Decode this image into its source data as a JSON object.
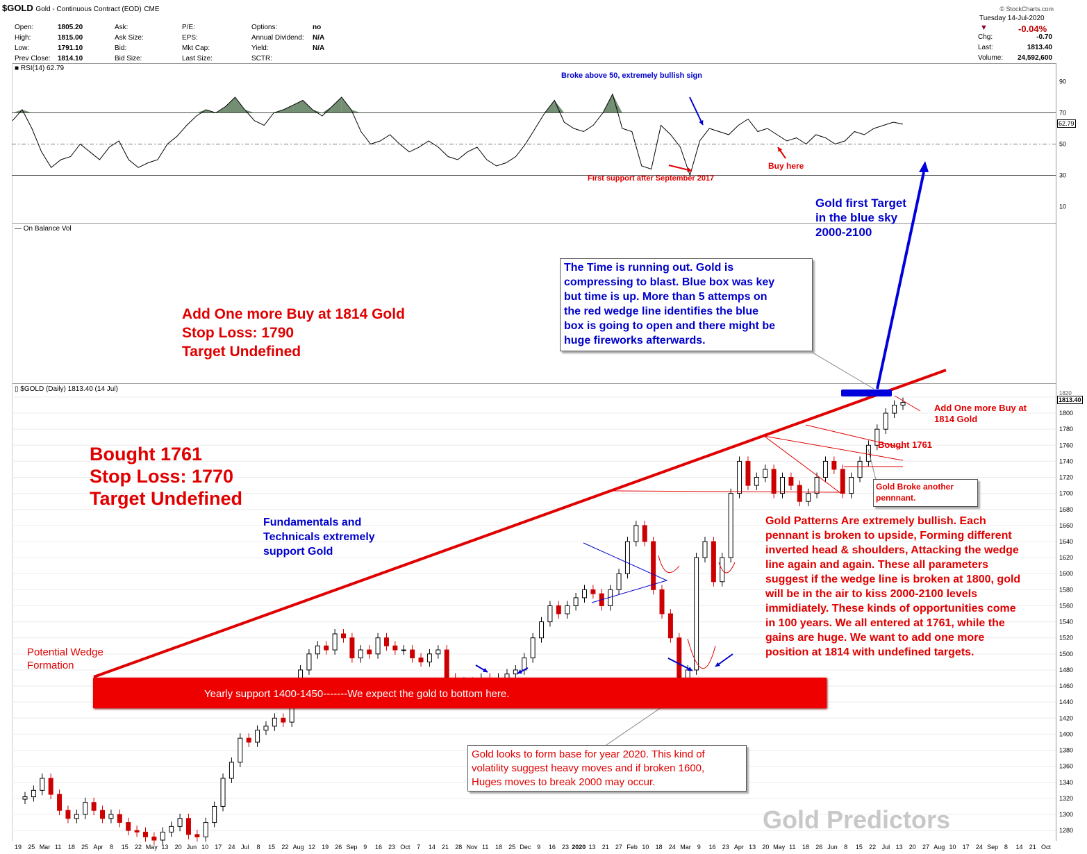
{
  "header": {
    "symbol": "$GOLD",
    "description": "Gold - Continuous Contract (EOD)",
    "exchange": "CME",
    "provider": "© StockCharts.com",
    "date": "Tuesday  14-Jul-2020",
    "change_pct": "-0.04%",
    "quotes_col1": [
      [
        "Open:",
        "1805.20"
      ],
      [
        "High:",
        "1815.00"
      ],
      [
        "Low:",
        "1791.10"
      ],
      [
        "Prev Close:",
        "1814.10"
      ]
    ],
    "quotes_col2": [
      [
        "Ask:",
        ""
      ],
      [
        "Ask Size:",
        ""
      ],
      [
        "Bid:",
        ""
      ],
      [
        "Bid Size:",
        ""
      ]
    ],
    "quotes_col3": [
      [
        "P/E:",
        ""
      ],
      [
        "EPS:",
        ""
      ],
      [
        "Mkt Cap:",
        ""
      ],
      [
        "Last Size:",
        ""
      ]
    ],
    "quotes_col4": [
      [
        "Options:",
        "no"
      ],
      [
        "Annual Dividend:",
        "N/A"
      ],
      [
        "Yield:",
        "N/A"
      ],
      [
        "SCTR:",
        ""
      ]
    ],
    "quotes_right": [
      [
        "Chg:",
        "-0.70"
      ],
      [
        "Last:",
        "1813.40"
      ],
      [
        "Volume:",
        "24,592,600"
      ]
    ]
  },
  "rsi_panel": {
    "label": "RSI(14) 62.79",
    "value_tag": "62.79",
    "ticks": [
      "90",
      "70",
      "50",
      "30",
      "10"
    ],
    "notes": {
      "broke50": "Broke above 50, extremely bullish sign",
      "first_support": "First support after September 2017",
      "buy_here": "Buy here"
    }
  },
  "obv_panel": {
    "label": "On Balance Vol"
  },
  "price_panel": {
    "label": "$GOLD (Daily) 1813.40 (14 Jul)",
    "last_tag": "1813.40",
    "top_tick": "1820"
  },
  "annotations": {
    "first_target": [
      "Gold first Target",
      "in the blue sky",
      "2000-2100"
    ],
    "time_box": [
      "The Time is running out. Gold is",
      "compressing to blast. Blue box was key",
      "but time is up. More than 5 attemps on",
      "the red wedge line identifies the blue",
      "box is going to open and there might be",
      "huge fireworks afterwards."
    ],
    "add_one_more": [
      "Add One more Buy at 1814 Gold",
      "Stop Loss: 1790",
      "Target Undefined"
    ],
    "add_one_more_small": [
      "Add One more Buy at",
      "1814 Gold"
    ],
    "bought_big": [
      "Bought 1761",
      "Stop Loss: 1770",
      "Target Undefined"
    ],
    "bought_small": "Bought 1761",
    "pennant_box": [
      "Gold Broke another",
      "pennnant."
    ],
    "fundamentals": [
      "Fundamentals and",
      "Technicals extremely",
      "support Gold"
    ],
    "patterns": [
      "Gold Patterns Are extremely bullish. Each",
      "pennant is broken to upside, Forming different",
      "inverted head & shoulders, Attacking the wedge",
      "line again and again. These all parameters",
      "suggest if the wedge line is broken at 1800, gold",
      "will be in the air to kiss 2000-2100 levels",
      "immidiately. These kinds of opportunities come",
      "in 100 years. We all entered at 1761, while the",
      "gains are huge. We want to add one more",
      "position at 1814 with undefined targets."
    ],
    "wedge": [
      "Potential Wedge",
      "Formation"
    ],
    "support_bar": "Yearly support 1400-1450-------We expect the gold to bottom here.",
    "base_box": [
      "Gold looks to form base for year 2020. This kind of",
      "volatility suggest heavy moves and if broken 1600,",
      "Huges moves to break 2000 may occur."
    ],
    "watermark": "Gold Predictors"
  },
  "colors": {
    "up": "#000000",
    "down": "#cc0000",
    "wedge": "#e00000",
    "target_arrow": "#0000dd",
    "support_bar": "#ee0000",
    "rsi_fill": "#5a7a5a"
  },
  "chart_data": [
    {
      "type": "candlestick",
      "title": "$GOLD (Daily) 1813.40 (14 Jul)",
      "x_labels": [
        "19",
        "25",
        "Mar",
        "11",
        "18",
        "25",
        "Apr",
        "8",
        "15",
        "22",
        "May",
        "13",
        "20",
        "Jun",
        "10",
        "17",
        "24",
        "Jul",
        "8",
        "15",
        "22",
        "Aug",
        "12",
        "19",
        "26",
        "Sep",
        "9",
        "16",
        "23",
        "Oct",
        "7",
        "14",
        "21",
        "28",
        "Nov",
        "11",
        "18",
        "25",
        "Dec",
        "9",
        "16",
        "23",
        "2020",
        "13",
        "21",
        "27",
        "Feb",
        "10",
        "18",
        "24",
        "Mar",
        "9",
        "16",
        "23",
        "Apr",
        "13",
        "20",
        "May",
        "11",
        "18",
        "26",
        "Jun",
        "8",
        "15",
        "22",
        "Jul",
        "13",
        "20",
        "27",
        "Aug",
        "10",
        "17",
        "24",
        "Sep",
        "8",
        "14",
        "21",
        "Oct"
      ],
      "y_ticks": [
        1280,
        1300,
        1320,
        1340,
        1360,
        1380,
        1400,
        1420,
        1440,
        1460,
        1480,
        1500,
        1520,
        1540,
        1560,
        1580,
        1600,
        1620,
        1640,
        1660,
        1680,
        1700,
        1720,
        1740,
        1760,
        1780,
        1800,
        1820
      ],
      "ylim": [
        1268,
        1826
      ],
      "last": 1813.4,
      "closes_approx": [
        1322,
        1330,
        1345,
        1325,
        1305,
        1295,
        1300,
        1315,
        1305,
        1295,
        1300,
        1290,
        1280,
        1278,
        1272,
        1268,
        1278,
        1285,
        1295,
        1275,
        1272,
        1290,
        1310,
        1345,
        1365,
        1395,
        1390,
        1405,
        1410,
        1420,
        1415,
        1450,
        1480,
        1500,
        1510,
        1505,
        1525,
        1520,
        1495,
        1505,
        1500,
        1520,
        1510,
        1505,
        1505,
        1495,
        1490,
        1500,
        1505,
        1470,
        1460,
        1465,
        1460,
        1470,
        1465,
        1470,
        1475,
        1480,
        1495,
        1520,
        1540,
        1560,
        1550,
        1560,
        1570,
        1580,
        1575,
        1560,
        1580,
        1600,
        1640,
        1660,
        1640,
        1580,
        1550,
        1520,
        1470,
        1480,
        1620,
        1640,
        1590,
        1620,
        1700,
        1740,
        1710,
        1720,
        1730,
        1700,
        1720,
        1710,
        1690,
        1700,
        1720,
        1740,
        1730,
        1700,
        1720,
        1740,
        1760,
        1780,
        1800,
        1810,
        1813.4
      ]
    },
    {
      "type": "line",
      "title": "RSI(14) 62.79",
      "ylim": [
        0,
        100
      ],
      "y_ticks": [
        10,
        30,
        50,
        70,
        90
      ],
      "reference_lines": [
        30,
        50,
        70
      ],
      "values_approx": [
        65,
        72,
        60,
        45,
        35,
        40,
        42,
        50,
        45,
        40,
        48,
        52,
        40,
        35,
        38,
        40,
        50,
        55,
        62,
        68,
        72,
        70,
        74,
        80,
        72,
        65,
        62,
        70,
        72,
        75,
        78,
        72,
        68,
        74,
        80,
        72,
        58,
        50,
        52,
        56,
        50,
        45,
        48,
        52,
        48,
        42,
        40,
        45,
        48,
        40,
        36,
        38,
        42,
        50,
        60,
        70,
        78,
        64,
        60,
        58,
        62,
        70,
        82,
        60,
        58,
        36,
        34,
        62,
        56,
        48,
        30,
        52,
        60,
        58,
        56,
        62,
        66,
        58,
        60,
        56,
        52,
        54,
        50,
        56,
        54,
        50,
        52,
        58,
        56,
        60,
        62,
        64,
        62.79
      ],
      "annotations": [
        "Broke above 50, extremely bullish sign",
        "First support after September 2017",
        "Buy here"
      ]
    }
  ]
}
